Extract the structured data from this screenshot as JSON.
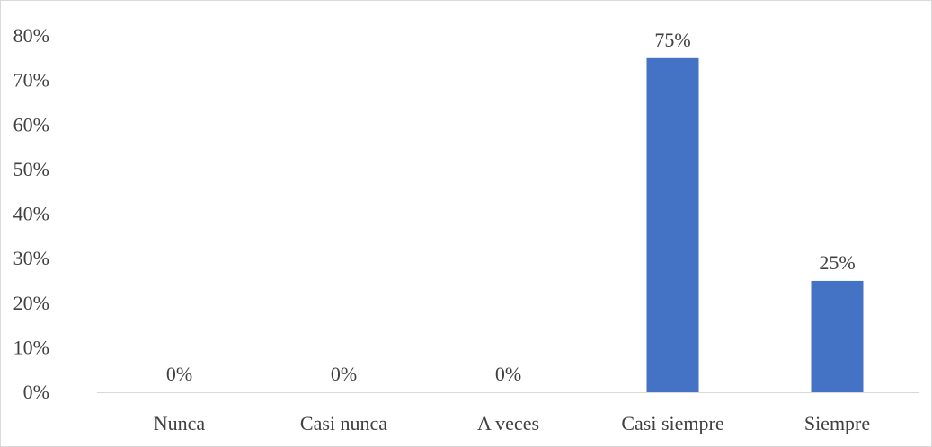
{
  "chart_data": {
    "type": "bar",
    "categories": [
      "Nunca",
      "Casi nunca",
      "A veces",
      "Casi siempre",
      "Siempre"
    ],
    "values": [
      0,
      0,
      0,
      75,
      25
    ],
    "data_labels": [
      "0%",
      "0%",
      "0%",
      "75%",
      "25%"
    ],
    "title": "",
    "xlabel": "",
    "ylabel": "",
    "ylim": [
      0,
      80
    ],
    "y_ticks": [
      0,
      10,
      20,
      30,
      40,
      50,
      60,
      70,
      80
    ],
    "y_tick_labels": [
      "0%",
      "10%",
      "20%",
      "30%",
      "40%",
      "50%",
      "60%",
      "70%",
      "80%"
    ],
    "grid": false,
    "legend": "none",
    "bar_color": "#4472C4",
    "axis_color": "#d9d9d9",
    "text_color": "#404040"
  }
}
